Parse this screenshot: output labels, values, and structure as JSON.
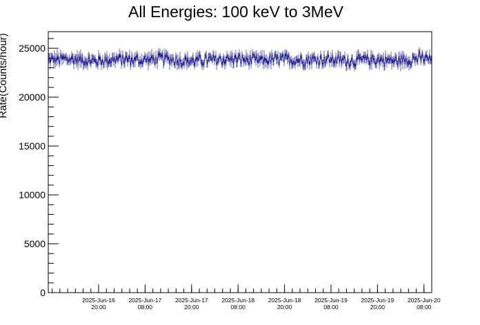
{
  "chart_data": {
    "type": "line",
    "title": "All Energies:  100 keV to 3MeV",
    "xlabel": "",
    "ylabel": "Rate(Counts/hour)",
    "ylim": [
      0,
      26700
    ],
    "xlim": [
      "2025-06-16 07:00",
      "2025-06-20 10:00"
    ],
    "y_ticks": [
      0,
      5000,
      10000,
      15000,
      20000,
      25000
    ],
    "y_tick_labels": [
      "0",
      "5000",
      "10000",
      "15000",
      "20000",
      "25000"
    ],
    "x_ticks": [
      {
        "date": "2025-Jun-16",
        "time": "20:00"
      },
      {
        "date": "2025-Jun-17",
        "time": "08:00"
      },
      {
        "date": "2025-Jun-17",
        "time": "20:00"
      },
      {
        "date": "2025-Jun-18",
        "time": "08:00"
      },
      {
        "date": "2025-Jun-18",
        "time": "20:00"
      },
      {
        "date": "2025-Jun-19",
        "time": "08:00"
      },
      {
        "date": "2025-Jun-19",
        "time": "20:00"
      },
      {
        "date": "2025-Jun-20",
        "time": "08:00"
      }
    ],
    "series": [
      {
        "color": "#000080",
        "x": [
          "2025-06-16 07:00",
          "2025-06-16 13:00",
          "2025-06-16 19:00",
          "2025-06-17 01:00",
          "2025-06-17 07:00",
          "2025-06-17 13:00",
          "2025-06-17 19:00",
          "2025-06-18 01:00",
          "2025-06-18 07:00",
          "2025-06-18 13:00",
          "2025-06-18 19:00",
          "2025-06-19 01:00",
          "2025-06-19 07:00",
          "2025-06-19 13:00",
          "2025-06-19 19:00",
          "2025-06-20 01:00",
          "2025-06-20 07:00",
          "2025-06-20 10:00"
        ],
        "y": [
          23800,
          23900,
          23700,
          23900,
          23800,
          23950,
          23700,
          23800,
          23900,
          23750,
          23850,
          23800,
          23900,
          23700,
          23850,
          23700,
          24000,
          23850
        ],
        "spread": 1400
      }
    ],
    "grid": false,
    "legend": "none"
  }
}
